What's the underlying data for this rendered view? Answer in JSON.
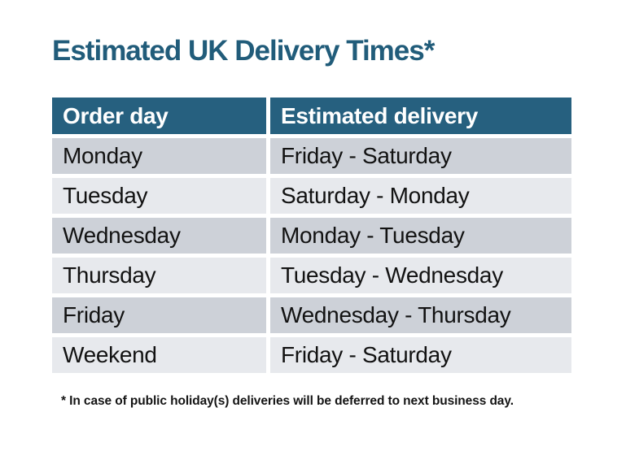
{
  "title": {
    "text": "Estimated UK Delivery Times*",
    "color": "#215C7A"
  },
  "table": {
    "columns": {
      "order_day": "Order day",
      "estimated_delivery": "Estimated delivery"
    },
    "rows": [
      {
        "order_day": "Monday",
        "estimated_delivery": "Friday - Saturday"
      },
      {
        "order_day": "Tuesday",
        "estimated_delivery": "Saturday - Monday"
      },
      {
        "order_day": "Wednesday",
        "estimated_delivery": "Monday - Tuesday"
      },
      {
        "order_day": "Thursday",
        "estimated_delivery": "Tuesday - Wednesday"
      },
      {
        "order_day": "Friday",
        "estimated_delivery": "Wednesday - Thursday"
      },
      {
        "order_day": "Weekend",
        "estimated_delivery": "Friday - Saturday"
      }
    ],
    "colors": {
      "header_bg": "#26607F",
      "header_text": "#FFFFFF",
      "row_dark": "#CDD1D8",
      "row_light": "#E7E9ED",
      "cell_text": "#121212"
    }
  },
  "footnote": {
    "text": "* In case of public holiday(s) deliveries will be deferred to next business day."
  },
  "chart_data": {
    "type": "table",
    "title": "Estimated UK Delivery Times*",
    "columns": [
      "Order day",
      "Estimated delivery"
    ],
    "rows": [
      [
        "Monday",
        "Friday - Saturday"
      ],
      [
        "Tuesday",
        "Saturday - Monday"
      ],
      [
        "Wednesday",
        "Monday - Tuesday"
      ],
      [
        "Thursday",
        "Tuesday - Wednesday"
      ],
      [
        "Friday",
        "Wednesday - Thursday"
      ],
      [
        "Weekend",
        "Friday - Saturday"
      ]
    ],
    "footnote": "* In case of public holiday(s) deliveries will be deferred to next business day.",
    "layout": {
      "header_bg": "#26607F",
      "alternating_rows": true,
      "grid": "white-gaps"
    }
  }
}
